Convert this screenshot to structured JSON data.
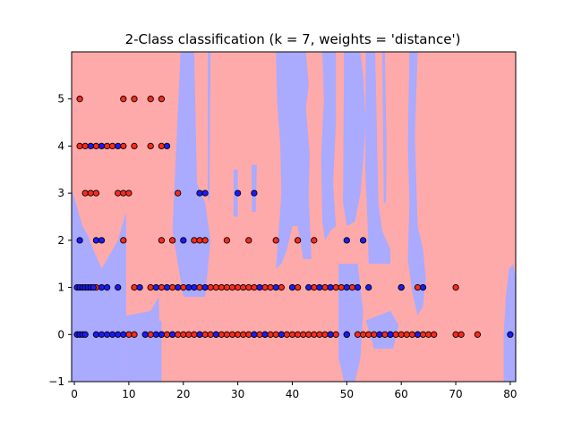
{
  "chart_data": {
    "type": "scatter",
    "title": "2-Class classification (k = 7, weights = 'distance')",
    "xlabel": "",
    "ylabel": "",
    "xlim": [
      -0.5,
      81
    ],
    "ylim": [
      -1,
      6
    ],
    "x_ticks": [
      0,
      10,
      20,
      30,
      40,
      50,
      60,
      70,
      80
    ],
    "y_ticks": [
      -1,
      0,
      1,
      2,
      3,
      4,
      5
    ],
    "grid": false,
    "legend": "none",
    "class_colors": {
      "class_0_point": "#ff2a1a",
      "class_1_point": "#1a1aff",
      "class_0_region": "#ffaaaa",
      "class_1_region": "#aaaaff",
      "point_edge": "#000000"
    },
    "decision_regions": [
      {
        "class": "class_1",
        "polygon": [
          [
            -0.5,
            -1
          ],
          [
            9.5,
            -1
          ],
          [
            9.5,
            2.6
          ],
          [
            8,
            2.0
          ],
          [
            6,
            1.6
          ],
          [
            5,
            1.4
          ],
          [
            3.5,
            1.8
          ],
          [
            2.5,
            2.1
          ],
          [
            1.5,
            2.3
          ],
          [
            0.5,
            2.7
          ],
          [
            -0.5,
            3.1
          ]
        ]
      },
      {
        "class": "class_1",
        "polygon": [
          [
            9.5,
            0.4
          ],
          [
            14,
            0.5
          ],
          [
            15.5,
            0.8
          ],
          [
            15.8,
            -1
          ],
          [
            9.5,
            -1
          ]
        ]
      },
      {
        "class": "class_1",
        "polygon": [
          [
            12,
            -1
          ],
          [
            16,
            -1
          ],
          [
            16,
            0.3
          ],
          [
            14,
            0.2
          ],
          [
            12,
            0.1
          ]
        ]
      },
      {
        "class": "class_1",
        "polygon": [
          [
            19.5,
            6
          ],
          [
            22,
            6
          ],
          [
            22.5,
            3.2
          ],
          [
            24,
            2.8
          ],
          [
            25,
            2.0
          ],
          [
            24,
            0.8
          ],
          [
            20,
            0.8
          ],
          [
            19,
            1.5
          ],
          [
            18,
            2.2
          ]
        ]
      },
      {
        "class": "class_1",
        "polygon": [
          [
            24.5,
            6
          ],
          [
            25,
            6
          ],
          [
            24.8,
            2.8
          ],
          [
            24.5,
            2.9
          ]
        ]
      },
      {
        "class": "class_1",
        "polygon": [
          [
            29.2,
            3.5
          ],
          [
            30,
            3.5
          ],
          [
            30,
            2.5
          ],
          [
            29.2,
            2.5
          ]
        ]
      },
      {
        "class": "class_1",
        "polygon": [
          [
            32.5,
            3.6
          ],
          [
            33.5,
            3.6
          ],
          [
            33.3,
            2.6
          ],
          [
            32.6,
            2.6
          ]
        ]
      },
      {
        "class": "class_1",
        "polygon": [
          [
            37,
            6
          ],
          [
            42.5,
            6
          ],
          [
            43,
            5.3
          ],
          [
            42.5,
            4.8
          ],
          [
            43.2,
            3.8
          ],
          [
            43,
            3.0
          ],
          [
            43.5,
            1.6
          ],
          [
            42,
            1.6
          ],
          [
            41,
            2.3
          ],
          [
            40,
            2.3
          ],
          [
            39,
            1.8
          ],
          [
            38,
            1.5
          ],
          [
            37,
            1.4
          ],
          [
            37.5,
            2.2
          ],
          [
            38,
            3.0
          ],
          [
            37.8,
            4.0
          ],
          [
            37.2,
            5.0
          ]
        ]
      },
      {
        "class": "class_1",
        "polygon": [
          [
            45.5,
            6
          ],
          [
            48,
            6
          ],
          [
            48,
            4.5
          ],
          [
            47.5,
            3.2
          ],
          [
            48,
            2.3
          ],
          [
            47,
            2.2
          ],
          [
            46,
            2.0
          ],
          [
            45.5,
            2.4
          ],
          [
            45.3,
            3.8
          ],
          [
            45.8,
            5.0
          ]
        ]
      },
      {
        "class": "class_1",
        "polygon": [
          [
            49.5,
            6
          ],
          [
            52.5,
            6
          ],
          [
            53,
            5.5
          ],
          [
            53.5,
            4.5
          ],
          [
            53,
            3.7
          ],
          [
            52.5,
            3.0
          ],
          [
            51.5,
            2.4
          ],
          [
            50,
            2.3
          ],
          [
            49.3,
            2.8
          ],
          [
            49.4,
            4.5
          ]
        ]
      },
      {
        "class": "class_1",
        "polygon": [
          [
            53.5,
            6
          ],
          [
            55.2,
            6
          ],
          [
            55.5,
            4.5
          ],
          [
            55.8,
            2.8
          ],
          [
            56.5,
            2.2
          ],
          [
            58,
            1.8
          ],
          [
            58,
            1.5
          ],
          [
            54,
            1.5
          ],
          [
            53.8,
            2.4
          ],
          [
            53.4,
            3.5
          ]
        ]
      },
      {
        "class": "class_1",
        "polygon": [
          [
            56.5,
            6
          ],
          [
            57,
            6
          ],
          [
            57.3,
            4.0
          ],
          [
            57.2,
            2.8
          ],
          [
            56.8,
            2.8
          ]
        ]
      },
      {
        "class": "class_1",
        "polygon": [
          [
            48.5,
            1.5
          ],
          [
            52,
            1.5
          ],
          [
            53,
            0.5
          ],
          [
            52.5,
            -0.5
          ],
          [
            51.5,
            -1
          ],
          [
            49.5,
            -1
          ],
          [
            48.5,
            -0.5
          ]
        ]
      },
      {
        "class": "class_1",
        "polygon": [
          [
            53.5,
            0.3
          ],
          [
            58,
            0.5
          ],
          [
            59.5,
            0.2
          ],
          [
            58.5,
            -0.3
          ],
          [
            55,
            -0.3
          ]
        ]
      },
      {
        "class": "class_1",
        "polygon": [
          [
            61.5,
            6
          ],
          [
            63,
            6
          ],
          [
            62.5,
            4.2
          ],
          [
            63,
            2.3
          ],
          [
            64,
            1.8
          ],
          [
            64.5,
            1.2
          ],
          [
            64,
            0.6
          ],
          [
            63,
            0.4
          ],
          [
            62,
            0.9
          ],
          [
            61.2,
            1.6
          ],
          [
            61.5,
            2.8
          ],
          [
            61.2,
            4.0
          ]
        ]
      },
      {
        "class": "class_1",
        "polygon": [
          [
            78.8,
            -1
          ],
          [
            81,
            -1
          ],
          [
            81,
            1.2
          ],
          [
            80.5,
            1.5
          ],
          [
            79.8,
            1.4
          ],
          [
            79.2,
            0.8
          ],
          [
            78.8,
            0.0
          ]
        ]
      }
    ],
    "series": [
      {
        "class": "class_0",
        "points": [
          [
            1,
            5
          ],
          [
            9,
            5
          ],
          [
            11,
            5
          ],
          [
            14,
            5
          ],
          [
            16,
            5
          ],
          [
            1,
            4
          ],
          [
            2,
            4
          ],
          [
            4,
            4
          ],
          [
            6,
            4
          ],
          [
            7,
            4
          ],
          [
            9,
            4
          ],
          [
            11,
            4
          ],
          [
            14,
            4
          ],
          [
            16,
            4
          ],
          [
            2,
            3
          ],
          [
            3,
            3
          ],
          [
            4,
            3
          ],
          [
            8,
            3
          ],
          [
            9,
            3
          ],
          [
            10,
            3
          ],
          [
            19,
            3
          ],
          [
            9,
            2
          ],
          [
            16,
            2
          ],
          [
            18,
            2
          ],
          [
            22,
            2
          ],
          [
            23,
            2
          ],
          [
            24,
            2
          ],
          [
            28,
            2
          ],
          [
            32,
            2
          ],
          [
            37,
            2
          ],
          [
            41,
            2
          ],
          [
            44,
            2
          ],
          [
            4,
            1
          ],
          [
            11,
            1
          ],
          [
            14,
            1
          ],
          [
            16,
            1
          ],
          [
            18,
            1
          ],
          [
            20,
            1
          ],
          [
            23,
            1
          ],
          [
            25,
            1
          ],
          [
            26,
            1
          ],
          [
            27,
            1
          ],
          [
            28,
            1
          ],
          [
            29,
            1
          ],
          [
            30,
            1
          ],
          [
            31,
            1
          ],
          [
            32,
            1
          ],
          [
            33,
            1
          ],
          [
            35,
            1
          ],
          [
            36,
            1
          ],
          [
            38,
            1
          ],
          [
            41,
            1
          ],
          [
            44,
            1
          ],
          [
            46,
            1
          ],
          [
            48,
            1
          ],
          [
            49,
            1
          ],
          [
            51,
            1
          ],
          [
            60,
            1
          ],
          [
            63,
            1
          ],
          [
            70,
            1
          ],
          [
            10,
            0
          ],
          [
            11,
            0
          ],
          [
            14,
            0
          ],
          [
            16,
            0
          ],
          [
            17,
            0
          ],
          [
            18,
            0
          ],
          [
            19,
            0
          ],
          [
            20,
            0
          ],
          [
            21,
            0
          ],
          [
            22,
            0
          ],
          [
            23,
            0
          ],
          [
            24,
            0
          ],
          [
            25,
            0
          ],
          [
            26,
            0
          ],
          [
            27,
            0
          ],
          [
            28,
            0
          ],
          [
            29,
            0
          ],
          [
            30,
            0
          ],
          [
            31,
            0
          ],
          [
            32,
            0
          ],
          [
            33,
            0
          ],
          [
            34,
            0
          ],
          [
            35,
            0
          ],
          [
            36,
            0
          ],
          [
            37,
            0
          ],
          [
            38,
            0
          ],
          [
            39,
            0
          ],
          [
            40,
            0
          ],
          [
            41,
            0
          ],
          [
            42,
            0
          ],
          [
            43,
            0
          ],
          [
            44,
            0
          ],
          [
            45,
            0
          ],
          [
            46,
            0
          ],
          [
            47,
            0
          ],
          [
            48,
            0
          ],
          [
            50,
            0
          ],
          [
            52,
            0
          ],
          [
            53,
            0
          ],
          [
            54,
            0
          ],
          [
            55,
            0
          ],
          [
            57,
            0
          ],
          [
            58,
            0
          ],
          [
            59,
            0
          ],
          [
            60,
            0
          ],
          [
            61,
            0
          ],
          [
            62,
            0
          ],
          [
            63,
            0
          ],
          [
            64,
            0
          ],
          [
            65,
            0
          ],
          [
            66,
            0
          ],
          [
            70,
            0
          ],
          [
            71,
            0
          ],
          [
            74,
            0
          ]
        ]
      },
      {
        "class": "class_1",
        "points": [
          [
            3,
            4
          ],
          [
            5,
            4
          ],
          [
            8,
            4
          ],
          [
            17,
            4
          ],
          [
            23,
            3
          ],
          [
            24,
            3
          ],
          [
            30,
            3
          ],
          [
            33,
            3
          ],
          [
            1,
            2
          ],
          [
            4,
            2
          ],
          [
            5,
            2
          ],
          [
            20,
            2
          ],
          [
            50,
            2
          ],
          [
            53,
            2
          ],
          [
            0.5,
            1
          ],
          [
            1,
            1
          ],
          [
            1.5,
            1
          ],
          [
            2,
            1
          ],
          [
            2.5,
            1
          ],
          [
            3,
            1
          ],
          [
            3.5,
            1
          ],
          [
            5,
            1
          ],
          [
            6,
            1
          ],
          [
            8,
            1
          ],
          [
            12,
            1
          ],
          [
            15,
            1
          ],
          [
            17,
            1
          ],
          [
            19,
            1
          ],
          [
            21,
            1
          ],
          [
            22,
            1
          ],
          [
            24,
            1
          ],
          [
            34,
            1
          ],
          [
            37,
            1
          ],
          [
            40,
            1
          ],
          [
            43,
            1
          ],
          [
            45,
            1
          ],
          [
            47,
            1
          ],
          [
            50,
            1
          ],
          [
            52,
            1
          ],
          [
            54,
            1
          ],
          [
            60,
            1
          ],
          [
            64,
            1
          ],
          [
            0.5,
            0
          ],
          [
            1,
            0
          ],
          [
            1.5,
            0
          ],
          [
            2,
            0
          ],
          [
            4,
            0
          ],
          [
            5,
            0
          ],
          [
            6,
            0
          ],
          [
            7,
            0
          ],
          [
            8,
            0
          ],
          [
            9,
            0
          ],
          [
            13,
            0
          ],
          [
            15,
            0
          ],
          [
            16,
            0
          ],
          [
            18,
            0
          ],
          [
            23,
            0
          ],
          [
            26,
            0
          ],
          [
            33,
            0
          ],
          [
            35,
            0
          ],
          [
            38,
            0
          ],
          [
            47,
            0
          ],
          [
            50,
            0
          ],
          [
            56,
            0
          ],
          [
            58,
            0
          ],
          [
            63,
            0
          ],
          [
            80,
            0
          ]
        ]
      }
    ]
  }
}
